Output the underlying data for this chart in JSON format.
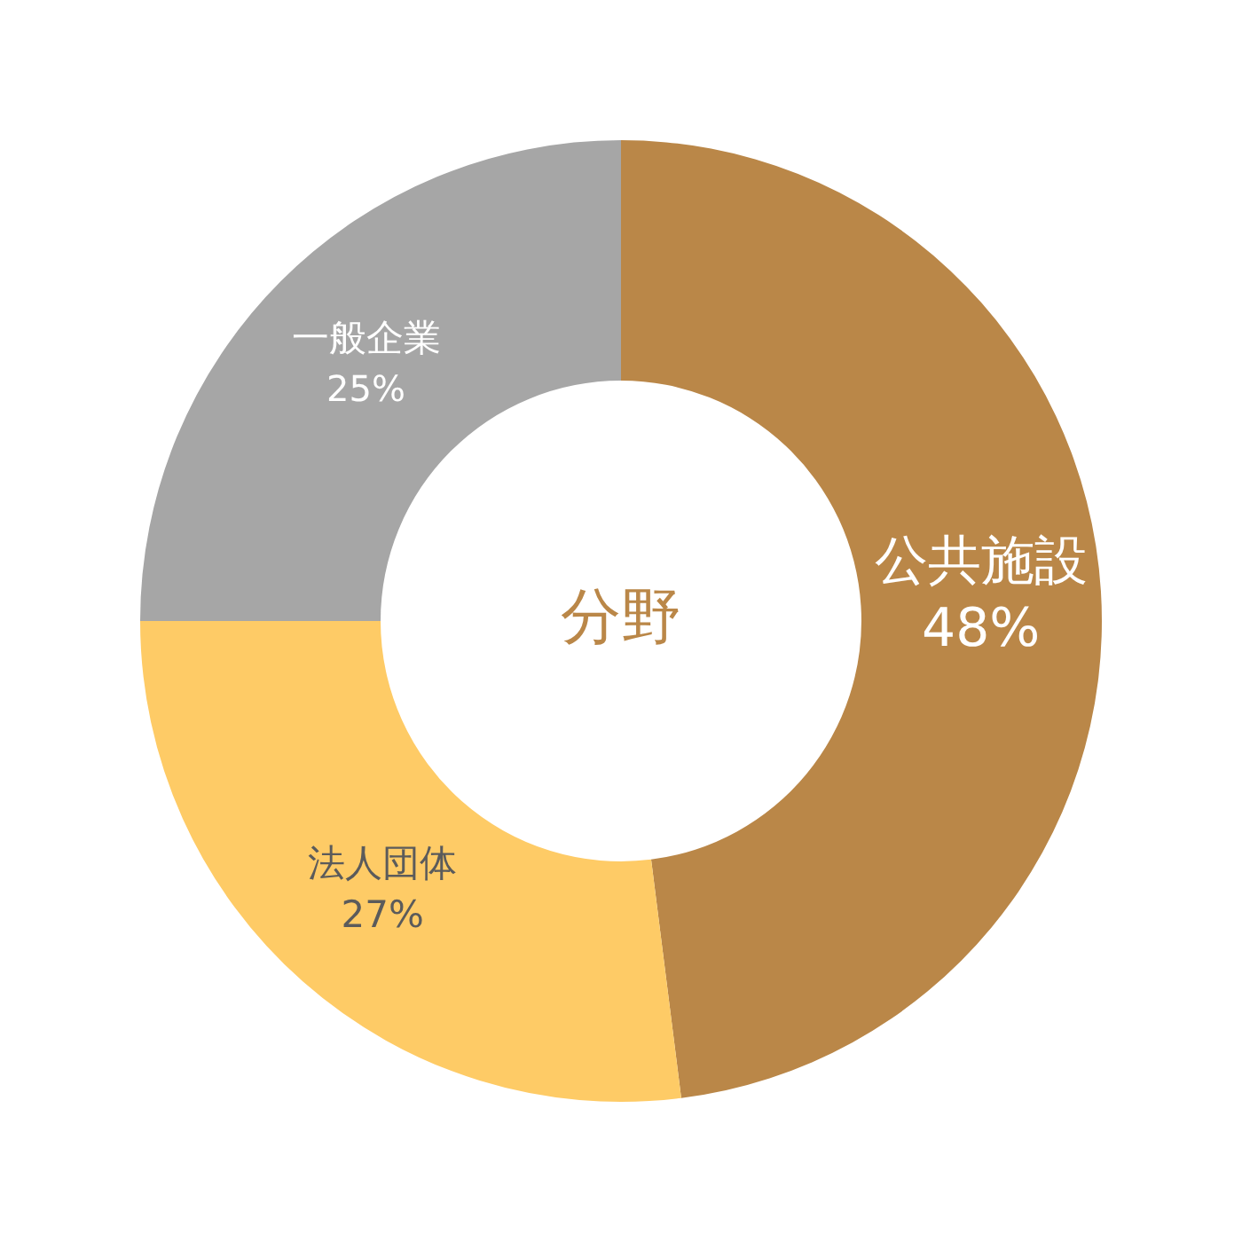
{
  "chart_data": {
    "type": "donut",
    "title": "分野",
    "categories": [
      "公共施設",
      "法人団体",
      "一般企業"
    ],
    "values": [
      48,
      27,
      25
    ],
    "colors": [
      "#ba8748",
      "#fecb66",
      "#a6a6a6"
    ],
    "value_labels": [
      "48%",
      "27%",
      "25%"
    ]
  }
}
